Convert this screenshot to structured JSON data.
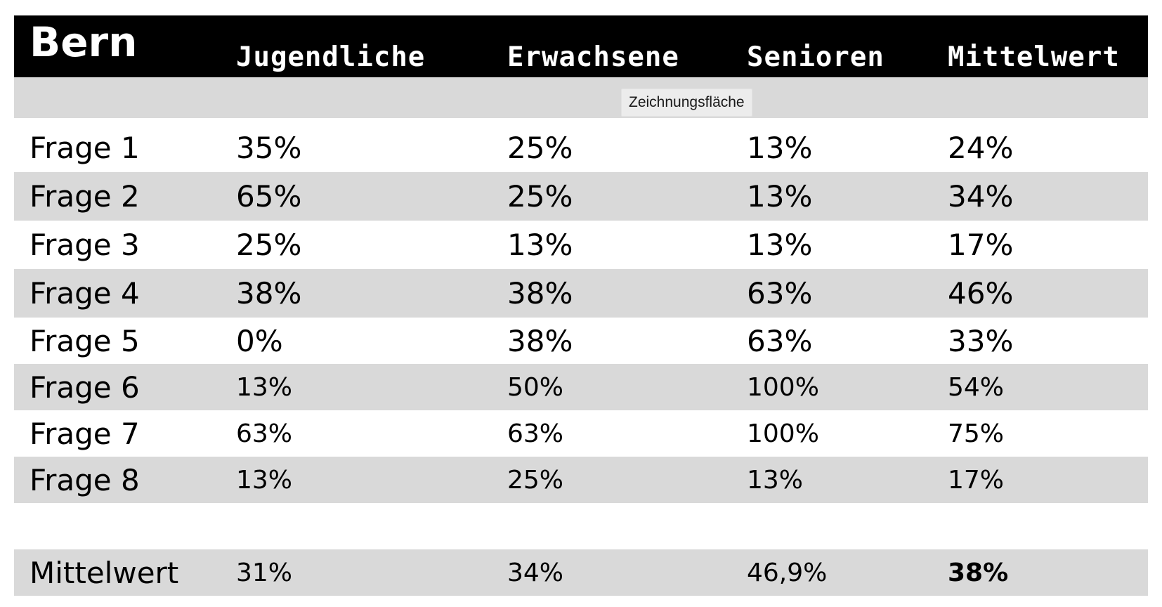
{
  "header": {
    "title": "Bern",
    "columns": [
      "Jugendliche",
      "Erwachsene",
      "Senioren",
      "Mittelwert"
    ]
  },
  "tooltip": "Zeichnungsfläche",
  "rows": [
    {
      "label": "Frage 1",
      "values": [
        "35%",
        "25%",
        "13%",
        "24%"
      ]
    },
    {
      "label": "Frage 2",
      "values": [
        "65%",
        "25%",
        "13%",
        "34%"
      ]
    },
    {
      "label": "Frage 3",
      "values": [
        "25%",
        "13%",
        "13%",
        "17%"
      ]
    },
    {
      "label": "Frage 4",
      "values": [
        "38%",
        "38%",
        "63%",
        "46%"
      ]
    },
    {
      "label": "Frage 5",
      "values": [
        "0%",
        "38%",
        "63%",
        "33%"
      ]
    },
    {
      "label": "Frage 6",
      "values": [
        "13%",
        "50%",
        "100%",
        "54%"
      ]
    },
    {
      "label": "Frage 7",
      "values": [
        "63%",
        "63%",
        "100%",
        "75%"
      ]
    },
    {
      "label": "Frage 8",
      "values": [
        "13%",
        "25%",
        "13%",
        "17%"
      ]
    }
  ],
  "summary": {
    "label": "Mittelwert",
    "values": [
      "31%",
      "34%",
      "46,9%",
      "38%"
    ]
  },
  "colors": {
    "header_bg": "#000000",
    "header_text": "#ffffff",
    "shade": "#d9d9d9"
  }
}
